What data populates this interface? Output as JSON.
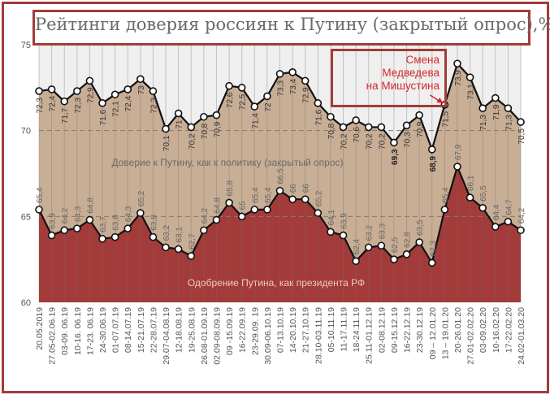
{
  "chart_data": {
    "type": "area",
    "title": "Рейтинги доверия россиян к Путину (закрытый опрос),%",
    "ylim": [
      60,
      75
    ],
    "yticks": [
      "60",
      "65",
      "70",
      "75"
    ],
    "grid": true,
    "categories": [
      "20.05.2019",
      "27.05-02.06.19",
      "03-09. 06.19",
      "10-16. 06.19",
      "17-23. 06.19",
      "24-30.06.19",
      "01-07.07.19",
      "08-14.07.19",
      "15-21.07.19",
      "22-28.07.19",
      "29.07-04.08.19",
      "12-18.08.19",
      "19-25.08.19",
      "26.08-01.09.19",
      "02.09-08.09.19",
      "09 -15.09.19",
      "16-22.09.19",
      "23-29.09. 19",
      "30.09-06.10.19",
      "07-13.10.19",
      "14-20.10.19",
      "21-27.10.19",
      "28.10-03.11.19",
      "05-10.11.19",
      "11-17.11.19",
      "18-24.11.19",
      "25.11-01.12.19",
      "02-08.12.19",
      "09-15.12.19",
      "16-22.12.19",
      "23-30.12.19",
      "09 – 12.01.20",
      "13 – 19.01.20",
      "20-26.01.20",
      "27.01-02.02.20",
      "03-09.02.20",
      "10-16.02.20",
      "17-22.02.20",
      "24.02-01.03.20"
    ],
    "series": [
      {
        "name": "Доверие к Путину, как к политику (закрытый опрос)",
        "color": "#c8ae95",
        "values": [
          72.3,
          72.4,
          71.7,
          72.3,
          72.9,
          71.6,
          72.1,
          72.4,
          73,
          72.3,
          70.1,
          71,
          70.2,
          70.8,
          70.9,
          72.6,
          72.5,
          71.4,
          72,
          73.3,
          73.4,
          72.9,
          71.6,
          70.8,
          70.2,
          70.6,
          70.2,
          70.2,
          69.3,
          70.3,
          70.9,
          68.9,
          71.5,
          73.9,
          73.1,
          71.3,
          71.9,
          71.3,
          70.5
        ]
      },
      {
        "name": "Одобрение Путина, как президента РФ",
        "color": "#a33b3a",
        "values": [
          65.4,
          63.9,
          64.2,
          64.3,
          64.8,
          63.7,
          63.8,
          64.3,
          65.2,
          63.8,
          63.2,
          63.1,
          62.7,
          64.2,
          64.8,
          65.8,
          65,
          65.4,
          65.4,
          66.5,
          66,
          66,
          65.2,
          64.1,
          63.9,
          62.4,
          63.2,
          63.3,
          62.5,
          62.8,
          63.5,
          62.3,
          65.4,
          67.9,
          66.1,
          65.5,
          64.4,
          64.7,
          64.2
        ]
      }
    ],
    "annotation": {
      "text_lines": [
        "Смена",
        "Медведева",
        "на Мишустина"
      ],
      "category_index": 32
    }
  }
}
